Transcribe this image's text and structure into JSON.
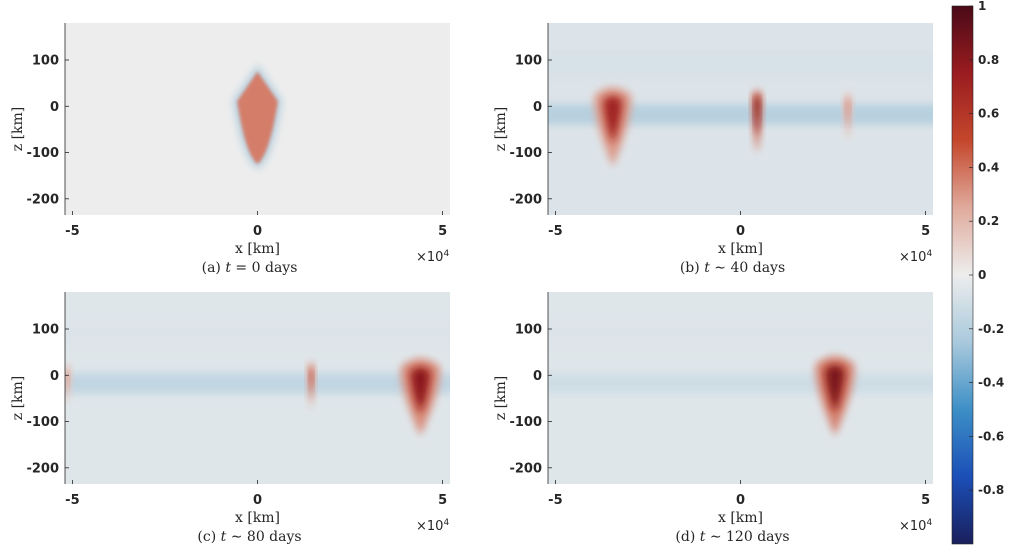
{
  "chart_data": [
    {
      "type": "heatmap",
      "panel": "a",
      "caption": {
        "label": "(a)",
        "var": "t",
        "rel": "=",
        "value": "0",
        "unit": "days"
      },
      "xlabel": "x [km]",
      "ylabel": "z [km]",
      "x_multiplier": {
        "base": "×10",
        "exp": "4"
      },
      "xlim": [
        -5.2,
        5.2
      ],
      "ylim": [
        -235,
        180
      ],
      "xticks": [
        -5,
        0,
        5
      ],
      "yticks": [
        100,
        0,
        -100,
        -200
      ],
      "background_level": 0.0,
      "features": [
        {
          "kind": "blob",
          "x": 0.0,
          "ztop": 75,
          "zbot": -125,
          "halfwidth": 0.55,
          "amplitude": 0.36,
          "shape": "diamond"
        }
      ]
    },
    {
      "type": "heatmap",
      "panel": "b",
      "caption": {
        "label": "(b)",
        "var": "t",
        "rel": "∼",
        "value": "40",
        "unit": "days"
      },
      "xlabel": "x [km]",
      "ylabel": "z [km]",
      "x_multiplier": {
        "base": "×10",
        "exp": "4"
      },
      "xlim": [
        -5.2,
        5.2
      ],
      "ylim": [
        -235,
        180
      ],
      "xticks": [
        -5,
        0,
        5
      ],
      "yticks": [
        100,
        0,
        -100,
        -200
      ],
      "background_level": -0.06,
      "features": [
        {
          "kind": "blob",
          "x": -3.45,
          "ztop": 20,
          "zbot": -110,
          "halfwidth": 0.4,
          "amplitude": 0.72,
          "shape": "teardrop"
        },
        {
          "kind": "blob",
          "x": 0.45,
          "ztop": 20,
          "zbot": -95,
          "halfwidth": 0.12,
          "amplitude": 0.85,
          "shape": "teardrop"
        },
        {
          "kind": "blob",
          "x": 2.9,
          "ztop": 15,
          "zbot": -70,
          "halfwidth": 0.1,
          "amplitude": 0.35,
          "shape": "teardrop"
        },
        {
          "kind": "band",
          "ztop": 5,
          "zbot": -40,
          "amplitude": -0.22
        },
        {
          "kind": "band",
          "ztop": 120,
          "zbot": 60,
          "amplitude": -0.08
        }
      ]
    },
    {
      "type": "heatmap",
      "panel": "c",
      "caption": {
        "label": "(c)",
        "var": "t",
        "rel": "∼",
        "value": "80",
        "unit": "days"
      },
      "xlabel": "x [km]",
      "ylabel": "z [km]",
      "x_multiplier": {
        "base": "×10",
        "exp": "4"
      },
      "xlim": [
        -5.2,
        5.2
      ],
      "ylim": [
        -235,
        180
      ],
      "xticks": [
        -5,
        0,
        5
      ],
      "yticks": [
        100,
        0,
        -100,
        -200
      ],
      "background_level": -0.05,
      "features": [
        {
          "kind": "blob",
          "x": 4.4,
          "ztop": 15,
          "zbot": -110,
          "halfwidth": 0.42,
          "amplitude": 0.8,
          "shape": "teardrop"
        },
        {
          "kind": "blob",
          "x": 1.45,
          "ztop": 15,
          "zbot": -70,
          "halfwidth": 0.09,
          "amplitude": 0.55,
          "shape": "teardrop"
        },
        {
          "kind": "blob",
          "x": -5.15,
          "ztop": 10,
          "zbot": -60,
          "halfwidth": 0.1,
          "amplitude": 0.3,
          "shape": "teardrop"
        },
        {
          "kind": "band",
          "ztop": 5,
          "zbot": -40,
          "amplitude": -0.18
        },
        {
          "kind": "band",
          "ztop": 120,
          "zbot": 60,
          "amplitude": -0.06
        }
      ]
    },
    {
      "type": "heatmap",
      "panel": "d",
      "caption": {
        "label": "(d)",
        "var": "t",
        "rel": "∼",
        "value": "120",
        "unit": "days"
      },
      "xlabel": "x [km]",
      "ylabel": "z [km]",
      "x_multiplier": {
        "base": "×10",
        "exp": "4"
      },
      "xlim": [
        -5.2,
        5.2
      ],
      "ylim": [
        -235,
        180
      ],
      "xticks": [
        -5,
        0,
        5
      ],
      "yticks": [
        100,
        0,
        -100,
        -200
      ],
      "background_level": -0.05,
      "features": [
        {
          "kind": "blob",
          "x": 2.55,
          "ztop": 20,
          "zbot": -110,
          "halfwidth": 0.42,
          "amplitude": 0.85,
          "shape": "teardrop"
        },
        {
          "kind": "band",
          "ztop": 5,
          "zbot": -40,
          "amplitude": -0.12
        },
        {
          "kind": "band",
          "ztop": 120,
          "zbot": 60,
          "amplitude": -0.06
        }
      ]
    }
  ],
  "colorbar": {
    "range": [
      -1,
      1
    ],
    "ticks": [
      "1",
      "0.8",
      "0.6",
      "0.4",
      "0.2",
      "0",
      "-0.2",
      "-0.4",
      "-0.6",
      "-0.8"
    ],
    "tick_values": [
      1,
      0.8,
      0.6,
      0.4,
      0.2,
      0,
      -0.2,
      -0.4,
      -0.6,
      -0.8
    ],
    "colors": [
      "#1a1f5c",
      "#1b4fb8",
      "#3d8fc6",
      "#a9c9dc",
      "#ededed",
      "#e0aa9c",
      "#c4472c",
      "#9a1c20",
      "#4a0a17"
    ],
    "color_stops": [
      -1,
      -0.75,
      -0.5,
      -0.25,
      0,
      0.25,
      0.5,
      0.75,
      1
    ]
  }
}
